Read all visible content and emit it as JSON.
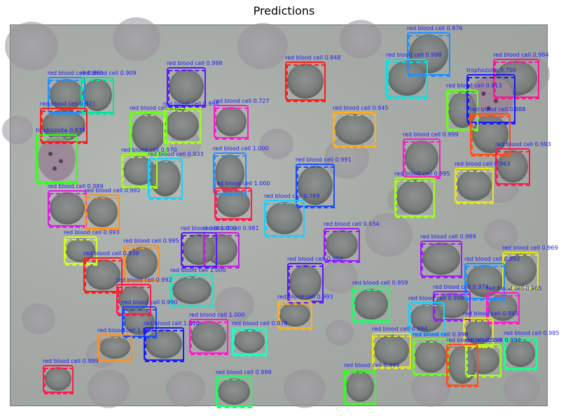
{
  "title": "Predictions",
  "colors": {
    "label_text": "#1a1aff"
  },
  "detections": [
    {
      "label": "red blood cell 0.876",
      "color": "#1e90ff"
    },
    {
      "label": "red blood cell 0.998",
      "color": "#00e5e5"
    },
    {
      "label": "red blood cell 0.984",
      "color": "#ff1493"
    },
    {
      "label": "red blood cell 0.848",
      "color": "#ff1a1a"
    },
    {
      "label": "red blood cell 0.998",
      "color": "#5a1aff"
    },
    {
      "label": "red blood cell 0.965",
      "color": "#1e90ff"
    },
    {
      "label": "red blood cell 0.909",
      "color": "#00e5a0"
    },
    {
      "label": "trophozoite 0.700",
      "color": "#1a1aff"
    },
    {
      "label": "red blood cell 0.813",
      "color": "#66ff1a"
    },
    {
      "label": "red blood cell 0.921",
      "color": "#ff1a1a"
    },
    {
      "label": "red blood cell 0.998",
      "color": "#a0ff1a"
    },
    {
      "label": "red blood cell 0.727",
      "color": "#ff1ad0"
    },
    {
      "label": "red blood cell 0.825",
      "color": "#66ff1a"
    },
    {
      "label": "red blood cell 0.945",
      "color": "#ffb01a"
    },
    {
      "label": "red blood cell 0.888",
      "color": "#ff4d1a"
    },
    {
      "label": "trophozoite 0.878",
      "color": "#33ff1a"
    },
    {
      "label": "red blood cell 0.999",
      "color": "#ff1ad0"
    },
    {
      "label": "red blood cell 0.993",
      "color": "#ff1a4d"
    },
    {
      "label": "red blood cell 0.970",
      "color": "#a0ff1a"
    },
    {
      "label": "red blood cell 0.933",
      "color": "#1ad0ff"
    },
    {
      "label": "red blood cell 1.000",
      "color": "#1e90ff"
    },
    {
      "label": "red blood cell 0.991",
      "color": "#1a4dff"
    },
    {
      "label": "red blood cell 0.963",
      "color": "#e5e51a"
    },
    {
      "label": "red blood cell 0.995",
      "color": "#a0ff1a"
    },
    {
      "label": "red blood cell 1.000",
      "color": "#ff1a4d"
    },
    {
      "label": "red blood cell 0.989",
      "color": "#e51ae5"
    },
    {
      "label": "red blood cell 0.992",
      "color": "#ff901a"
    },
    {
      "label": "red blood cell 0.769",
      "color": "#1ad0ff"
    },
    {
      "label": "red blood cell 0.981",
      "color": "#c81ae5"
    },
    {
      "label": "red blood cell 1.000",
      "color": "#5a1aff"
    },
    {
      "label": "red blood cell 0.934",
      "color": "#a01aff"
    },
    {
      "label": "red blood cell 0.989",
      "color": "#a01aff"
    },
    {
      "label": "red blood cell 0.993",
      "color": "#d0ff1a"
    },
    {
      "label": "red blood cell 0.995",
      "color": "#ff901a"
    },
    {
      "label": "red blood cell 0.969",
      "color": "#e5e51a"
    },
    {
      "label": "red blood cell 0.939",
      "color": "#ff1a1a"
    },
    {
      "label": "red blood cell 0.992",
      "color": "#5a1aff"
    },
    {
      "label": "red blood cell 0.992",
      "color": "#1e90ff"
    },
    {
      "label": "red blood cell 1.000",
      "color": "#1ae5c8"
    },
    {
      "label": "red blood cell 0.992",
      "color": "#ff1a4d"
    },
    {
      "label": "red blood cell 0.959",
      "color": "#1aff66"
    },
    {
      "label": "red blood cell 0.974",
      "color": "#a01aff"
    },
    {
      "label": "red blood cell 0.965",
      "color": "#ff1ad0"
    },
    {
      "label": "red blood cell 0.993",
      "color": "#ffb01a"
    },
    {
      "label": "red blood cell 0.998",
      "color": "#1ad0ff"
    },
    {
      "label": "red blood cell 0.990",
      "color": "#1a4dff"
    },
    {
      "label": "red blood cell 0.845",
      "color": "#e5e51a"
    },
    {
      "label": "red blood cell 1.000",
      "color": "#ff1ad0"
    },
    {
      "label": "red blood cell 0.878",
      "color": "#1affc8"
    },
    {
      "label": "red blood cell 1.000",
      "color": "#1a1aff"
    },
    {
      "label": "red blood cell 1.000",
      "color": "#ff901a"
    },
    {
      "label": "red blood cell 0.994",
      "color": "#e5e51a"
    },
    {
      "label": "red blood cell 0.999",
      "color": "#66ff1a"
    },
    {
      "label": "red blood cell 0.985",
      "color": "#1aff90"
    },
    {
      "label": "red blood cell 0.993",
      "color": "#a0ff1a"
    },
    {
      "label": "red blood cell 0.999",
      "color": "#ff4d1a"
    },
    {
      "label": "red blood cell 0.999",
      "color": "#ff1a4d"
    },
    {
      "label": "red blood cell 0.999",
      "color": "#1aff66"
    },
    {
      "label": "red blood cell 0.994",
      "color": "#33ff1a"
    }
  ]
}
